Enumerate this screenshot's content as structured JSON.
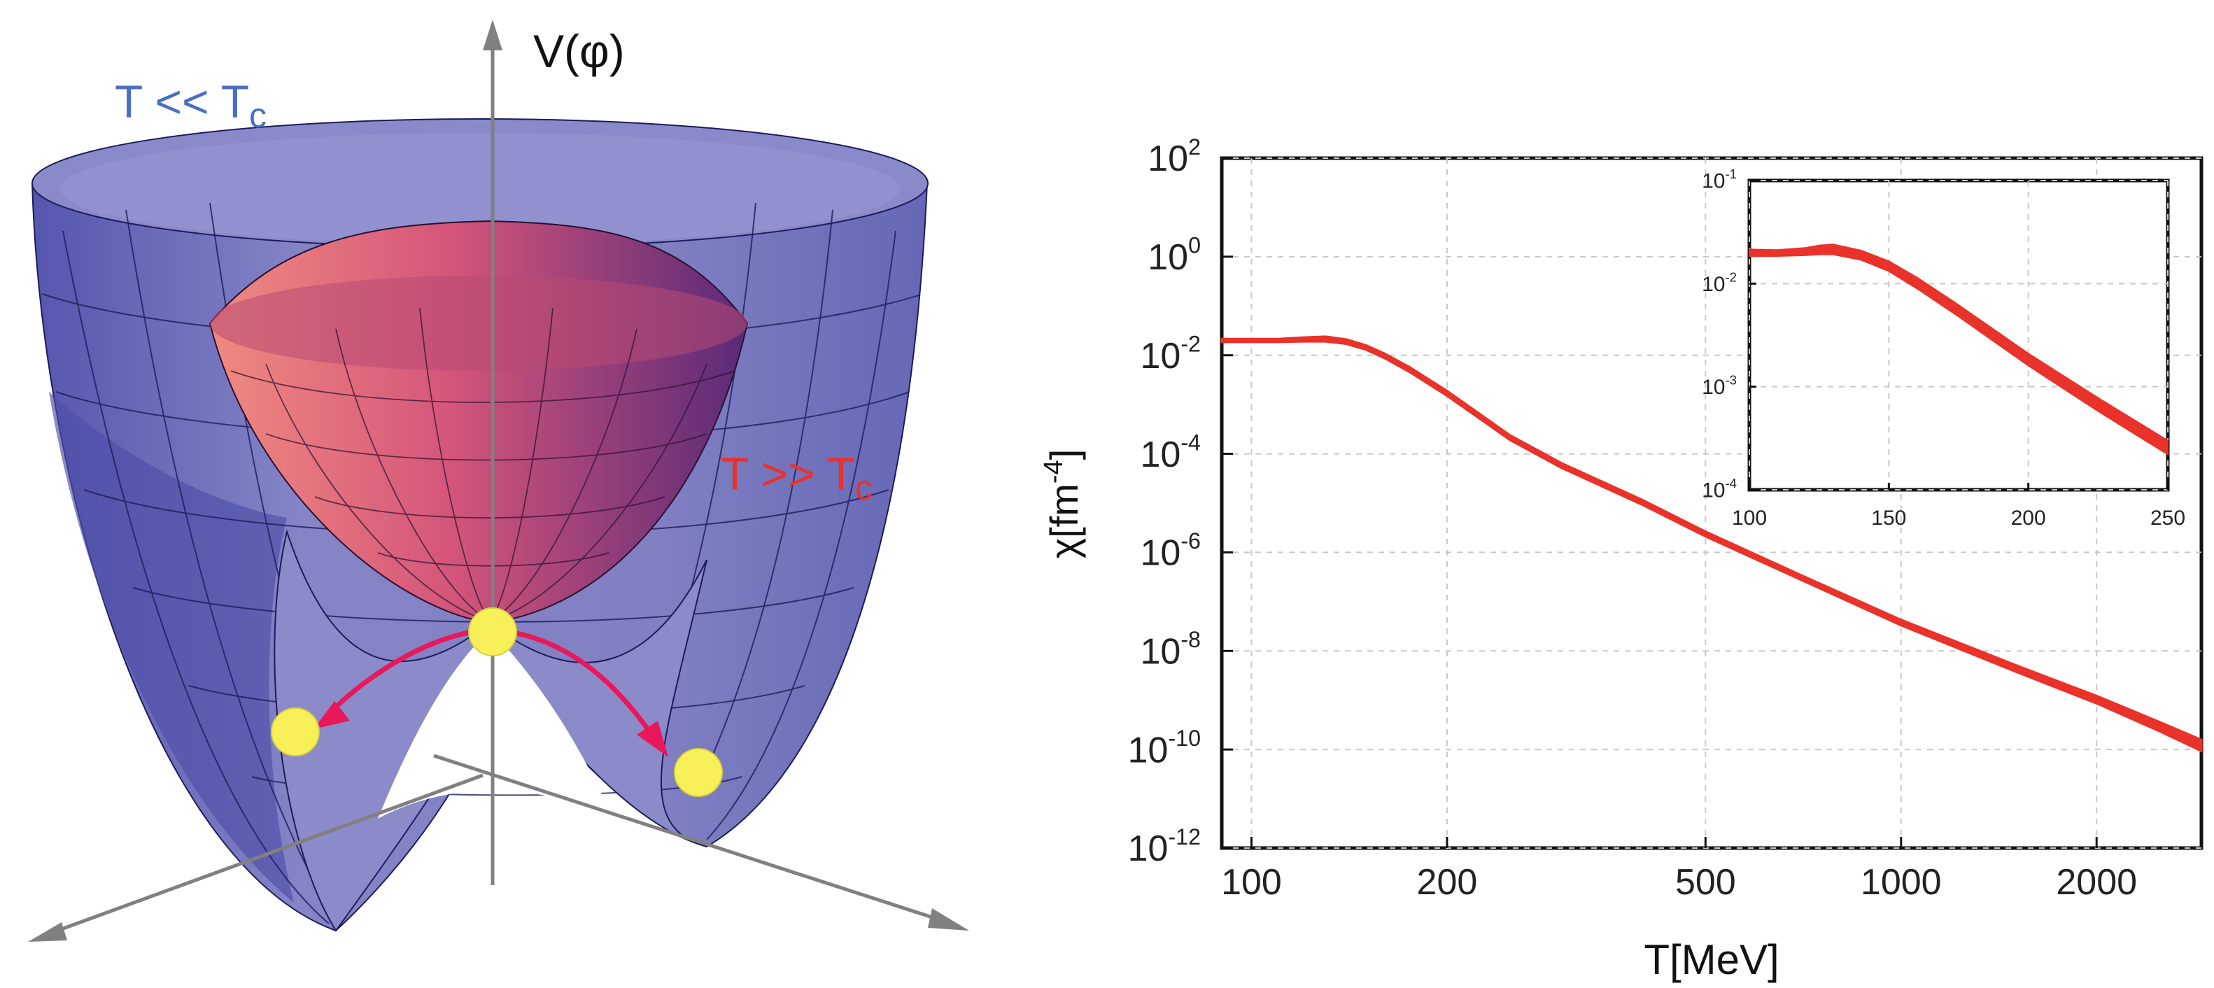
{
  "left_figure": {
    "axis_label": "V(φ)",
    "label_low": "T << T",
    "label_low_sub": "c",
    "label_high": "T >> T",
    "label_high_sub": "c",
    "colors": {
      "outer_surface": "#7f7fc0",
      "outer_dark": "#4d4ea8",
      "inner_surface": "#d4557a",
      "inner_light": "#f08a80",
      "inner_dark": "#5a2a78",
      "arrow": "#e8185a",
      "ball": "#f7f058",
      "axis": "#808080",
      "label_low": "#4a6fc0",
      "label_high": "#e8322a"
    }
  },
  "chart_data": [
    {
      "type": "line",
      "title": "",
      "xlabel": "T[MeV]",
      "ylabel_main": "χ[fm",
      "ylabel_sup": "-4",
      "ylabel_close": "]",
      "xscale": "log",
      "yscale": "log",
      "xlim": [
        90,
        2900
      ],
      "ylim": [
        1e-12,
        100
      ],
      "grid": true,
      "x_ticks": [
        {
          "v": 100,
          "label": "100"
        },
        {
          "v": 200,
          "label": "200"
        },
        {
          "v": 500,
          "label": "500"
        },
        {
          "v": 1000,
          "label": "1000"
        },
        {
          "v": 2000,
          "label": "2000"
        }
      ],
      "y_ticks": [
        {
          "v": 100,
          "base": "10",
          "exp": "2"
        },
        {
          "v": 1,
          "base": "10",
          "exp": "0"
        },
        {
          "v": 0.01,
          "base": "10",
          "exp": "-2"
        },
        {
          "v": 0.0001,
          "base": "10",
          "exp": "-4"
        },
        {
          "v": 1e-06,
          "base": "10",
          "exp": "-6"
        },
        {
          "v": 1e-08,
          "base": "10",
          "exp": "-8"
        },
        {
          "v": 1e-10,
          "base": "10",
          "exp": "-10"
        },
        {
          "v": 1e-12,
          "base": "10",
          "exp": "-12"
        }
      ],
      "series": [
        {
          "name": "chi_band",
          "color": "#e8322a",
          "x": [
            90,
            100,
            110,
            120,
            130,
            140,
            150,
            160,
            175,
            200,
            250,
            300,
            400,
            500,
            700,
            1000,
            1500,
            2000,
            2500,
            2900
          ],
          "upper": [
            0.0215,
            0.0215,
            0.0215,
            0.023,
            0.024,
            0.021,
            0.016,
            0.011,
            0.0058,
            0.0019,
            0.00024,
            6.5e-05,
            1.16e-05,
            2.65e-06,
            3.5e-07,
            4.3e-08,
            5.2e-09,
            1.23e-09,
            3.63e-10,
            1.58e-10
          ],
          "lower": [
            0.0185,
            0.0185,
            0.0185,
            0.019,
            0.019,
            0.017,
            0.013,
            0.0088,
            0.0046,
            0.0015,
            0.00019,
            5.2e-05,
            9.2e-06,
            2.1e-06,
            2.8e-07,
            3.3e-08,
            3.8e-09,
            8.6e-10,
            2.34e-10,
            9.3e-11
          ]
        }
      ]
    },
    {
      "type": "line",
      "title": "inset",
      "xscale": "linear",
      "yscale": "log",
      "xlim": [
        100,
        250
      ],
      "ylim": [
        0.0001,
        0.1
      ],
      "x_ticks": [
        {
          "v": 100,
          "label": "100"
        },
        {
          "v": 150,
          "label": "150"
        },
        {
          "v": 200,
          "label": "200"
        },
        {
          "v": 250,
          "label": "250"
        }
      ],
      "y_ticks": [
        {
          "v": 0.1,
          "base": "10",
          "exp": "-1"
        },
        {
          "v": 0.01,
          "base": "10",
          "exp": "-2"
        },
        {
          "v": 0.001,
          "base": "10",
          "exp": "-3"
        },
        {
          "v": 0.0001,
          "base": "10",
          "exp": "-4"
        }
      ],
      "series": [
        {
          "name": "chi_band_inset",
          "color": "#e8322a",
          "x": [
            100,
            110,
            120,
            125,
            130,
            140,
            150,
            160,
            175,
            200,
            225,
            250
          ],
          "upper": [
            0.0215,
            0.0212,
            0.0222,
            0.0235,
            0.024,
            0.021,
            0.0165,
            0.0115,
            0.0062,
            0.0021,
            0.00078,
            0.0003
          ],
          "lower": [
            0.0185,
            0.0185,
            0.0188,
            0.0192,
            0.0192,
            0.017,
            0.0132,
            0.009,
            0.0048,
            0.0016,
            0.00058,
            0.00022
          ]
        }
      ]
    }
  ]
}
